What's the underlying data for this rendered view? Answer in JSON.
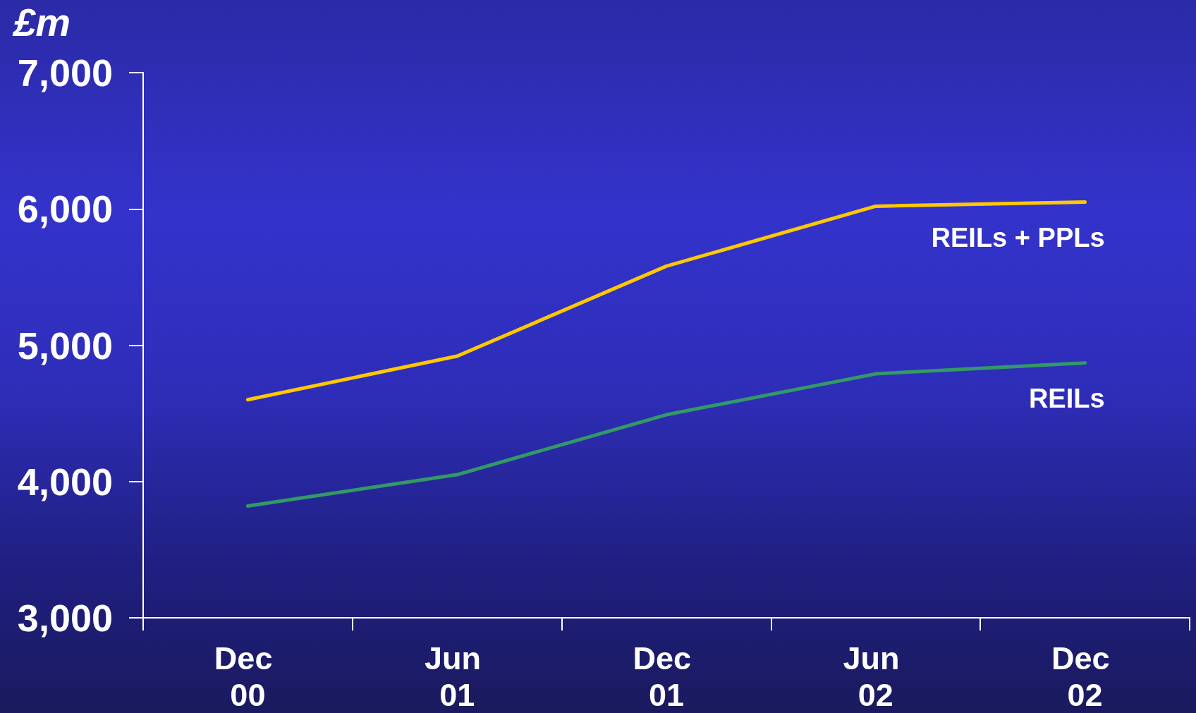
{
  "chart_data": {
    "type": "line",
    "ylabel": "£m",
    "categories": [
      "Dec 00",
      "Jun 01",
      "Dec 01",
      "Jun 02",
      "Dec 02"
    ],
    "series": [
      {
        "name": "REILs + PPLs",
        "color": "#ffc800",
        "values": [
          4600,
          4920,
          5580,
          6020,
          6050
        ]
      },
      {
        "name": "REILs",
        "color": "#339966",
        "values": [
          3820,
          4050,
          4490,
          4790,
          4870
        ]
      }
    ],
    "ylim": [
      3000,
      7000
    ],
    "yticks": [
      {
        "value": 3000,
        "label": "3,000"
      },
      {
        "value": 4000,
        "label": "4,000"
      },
      {
        "value": 5000,
        "label": "5,000"
      },
      {
        "value": 6000,
        "label": "6,000"
      },
      {
        "value": 7000,
        "label": "7,000"
      }
    ],
    "marker": "none",
    "line_style": "solid"
  }
}
